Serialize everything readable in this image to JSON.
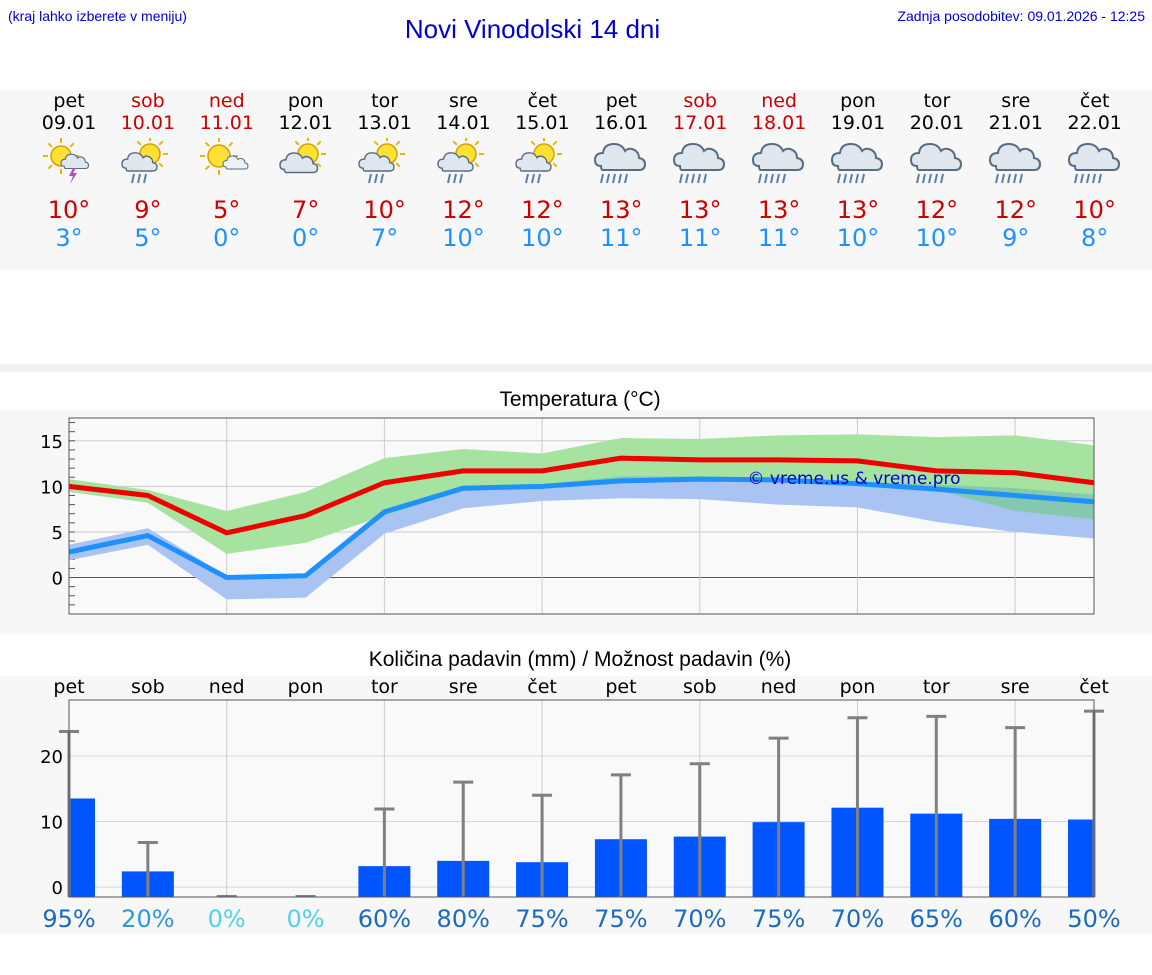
{
  "header": {
    "note": "(kraj lahko izberete v meniju)",
    "title": "Novi Vinodolski 14 dni",
    "updated": "Zadnja posodobitev: 09.01.2026 - 12:25"
  },
  "days": [
    {
      "name": "pet",
      "date": "09.01",
      "weekend": false,
      "icon": "sun-cloud-thunder-icon",
      "tmax": "10°",
      "tmin": "3°"
    },
    {
      "name": "sob",
      "date": "10.01",
      "weekend": true,
      "icon": "sun-cloud-rain-icon",
      "tmax": "9°",
      "tmin": "5°"
    },
    {
      "name": "ned",
      "date": "11.01",
      "weekend": true,
      "icon": "sun-small-cloud-icon",
      "tmax": "5°",
      "tmin": "0°"
    },
    {
      "name": "pon",
      "date": "12.01",
      "weekend": false,
      "icon": "sun-cloud-icon",
      "tmax": "7°",
      "tmin": "0°"
    },
    {
      "name": "tor",
      "date": "13.01",
      "weekend": false,
      "icon": "sun-cloud-rain-icon",
      "tmax": "10°",
      "tmin": "7°"
    },
    {
      "name": "sre",
      "date": "14.01",
      "weekend": false,
      "icon": "sun-cloud-rain-icon",
      "tmax": "12°",
      "tmin": "10°"
    },
    {
      "name": "čet",
      "date": "15.01",
      "weekend": false,
      "icon": "sun-cloud-rain-icon",
      "tmax": "12°",
      "tmin": "10°"
    },
    {
      "name": "pet",
      "date": "16.01",
      "weekend": false,
      "icon": "cloud-heavy-rain-icon",
      "tmax": "13°",
      "tmin": "11°"
    },
    {
      "name": "sob",
      "date": "17.01",
      "weekend": true,
      "icon": "cloud-heavy-rain-icon",
      "tmax": "13°",
      "tmin": "11°"
    },
    {
      "name": "ned",
      "date": "18.01",
      "weekend": true,
      "icon": "cloud-heavy-rain-icon",
      "tmax": "13°",
      "tmin": "11°"
    },
    {
      "name": "pon",
      "date": "19.01",
      "weekend": false,
      "icon": "cloud-heavy-rain-icon",
      "tmax": "13°",
      "tmin": "10°"
    },
    {
      "name": "tor",
      "date": "20.01",
      "weekend": false,
      "icon": "cloud-heavy-rain-icon",
      "tmax": "12°",
      "tmin": "10°"
    },
    {
      "name": "sre",
      "date": "21.01",
      "weekend": false,
      "icon": "cloud-heavy-rain-icon",
      "tmax": "12°",
      "tmin": "9°"
    },
    {
      "name": "čet",
      "date": "22.01",
      "weekend": false,
      "icon": "cloud-heavy-rain-icon",
      "tmax": "10°",
      "tmin": "8°"
    }
  ],
  "colors": {
    "maxLine": "#ee0000",
    "minLine": "#1e90ff",
    "maxBand": "#a6e3a1",
    "minBand": "#a9c4f2",
    "overlap": "#7ec4b0",
    "bar": "#0055ff",
    "whisker": "#808080"
  },
  "chart_data": [
    {
      "type": "line",
      "title": "Temperatura (°C)",
      "watermark": "© vreme.us & vreme.pro",
      "ylim": [
        -4,
        17.5
      ],
      "yticks": [
        0,
        5,
        10,
        15
      ],
      "x": [
        0,
        1,
        2,
        3,
        4,
        5,
        6,
        7,
        8,
        9,
        10,
        11,
        12,
        13
      ],
      "series": [
        {
          "name": "max",
          "values": [
            10,
            9,
            4.9,
            6.8,
            10.4,
            11.7,
            11.7,
            13.1,
            12.9,
            12.9,
            12.8,
            11.7,
            11.5,
            10.4
          ]
        },
        {
          "name": "max_low",
          "values": [
            9.4,
            8.2,
            2.6,
            3.8,
            6.8,
            9.5,
            10,
            10.4,
            10.8,
            10.6,
            10.3,
            9.6,
            7.3,
            6.4
          ]
        },
        {
          "name": "max_high",
          "values": [
            10.8,
            9.6,
            7.3,
            9.4,
            13.1,
            14.1,
            13.6,
            15.3,
            15.2,
            15.6,
            15.7,
            15.4,
            15.6,
            14.5
          ]
        },
        {
          "name": "min",
          "values": [
            2.8,
            4.6,
            0,
            0.2,
            7.2,
            9.8,
            10,
            10.6,
            10.8,
            10.7,
            10.3,
            9.7,
            9,
            8.3
          ]
        },
        {
          "name": "min_low",
          "values": [
            1.9,
            3.6,
            -2.4,
            -2.2,
            4.8,
            7.6,
            8.4,
            8.7,
            8.6,
            8,
            7.7,
            6.1,
            5,
            4.3
          ]
        },
        {
          "name": "min_high",
          "values": [
            3.6,
            5.4,
            0.2,
            0.4,
            7.4,
            9.9,
            10.2,
            11.1,
            11.1,
            11,
            10.4,
            10.2,
            9.8,
            9.1
          ]
        }
      ]
    },
    {
      "type": "bar",
      "title": "Količina padavin (mm) / Možnost padavin (%)",
      "day_labels": [
        "pet",
        "sob",
        "ned",
        "pon",
        "tor",
        "sre",
        "čet",
        "pet",
        "sob",
        "ned",
        "pon",
        "tor",
        "sre",
        "čet"
      ],
      "ylim": [
        -1.5,
        28.5
      ],
      "yticks": [
        0,
        10,
        20
      ],
      "values": [
        13.5,
        2.4,
        0,
        0,
        3.2,
        4,
        3.8,
        7.3,
        7.7,
        9.9,
        12.1,
        11.2,
        10.4,
        10.3
      ],
      "whisker_high": [
        23.7,
        6.8,
        0,
        0,
        11.9,
        16,
        14,
        17.1,
        18.8,
        22.7,
        25.8,
        26,
        24.3,
        26.8
      ],
      "probability": [
        "95%",
        "20%",
        "0%",
        "0%",
        "60%",
        "80%",
        "75%",
        "75%",
        "70%",
        "75%",
        "70%",
        "65%",
        "60%",
        "50%"
      ],
      "probability_colors": [
        "#1a6bbd",
        "#2e9ad6",
        "#4fd3e8",
        "#4fd3e8",
        "#1a6bbd",
        "#1a6bbd",
        "#1a6bbd",
        "#1a6bbd",
        "#1a6bbd",
        "#1a6bbd",
        "#1a6bbd",
        "#1a6bbd",
        "#1a6bbd",
        "#1a6bbd"
      ]
    }
  ]
}
